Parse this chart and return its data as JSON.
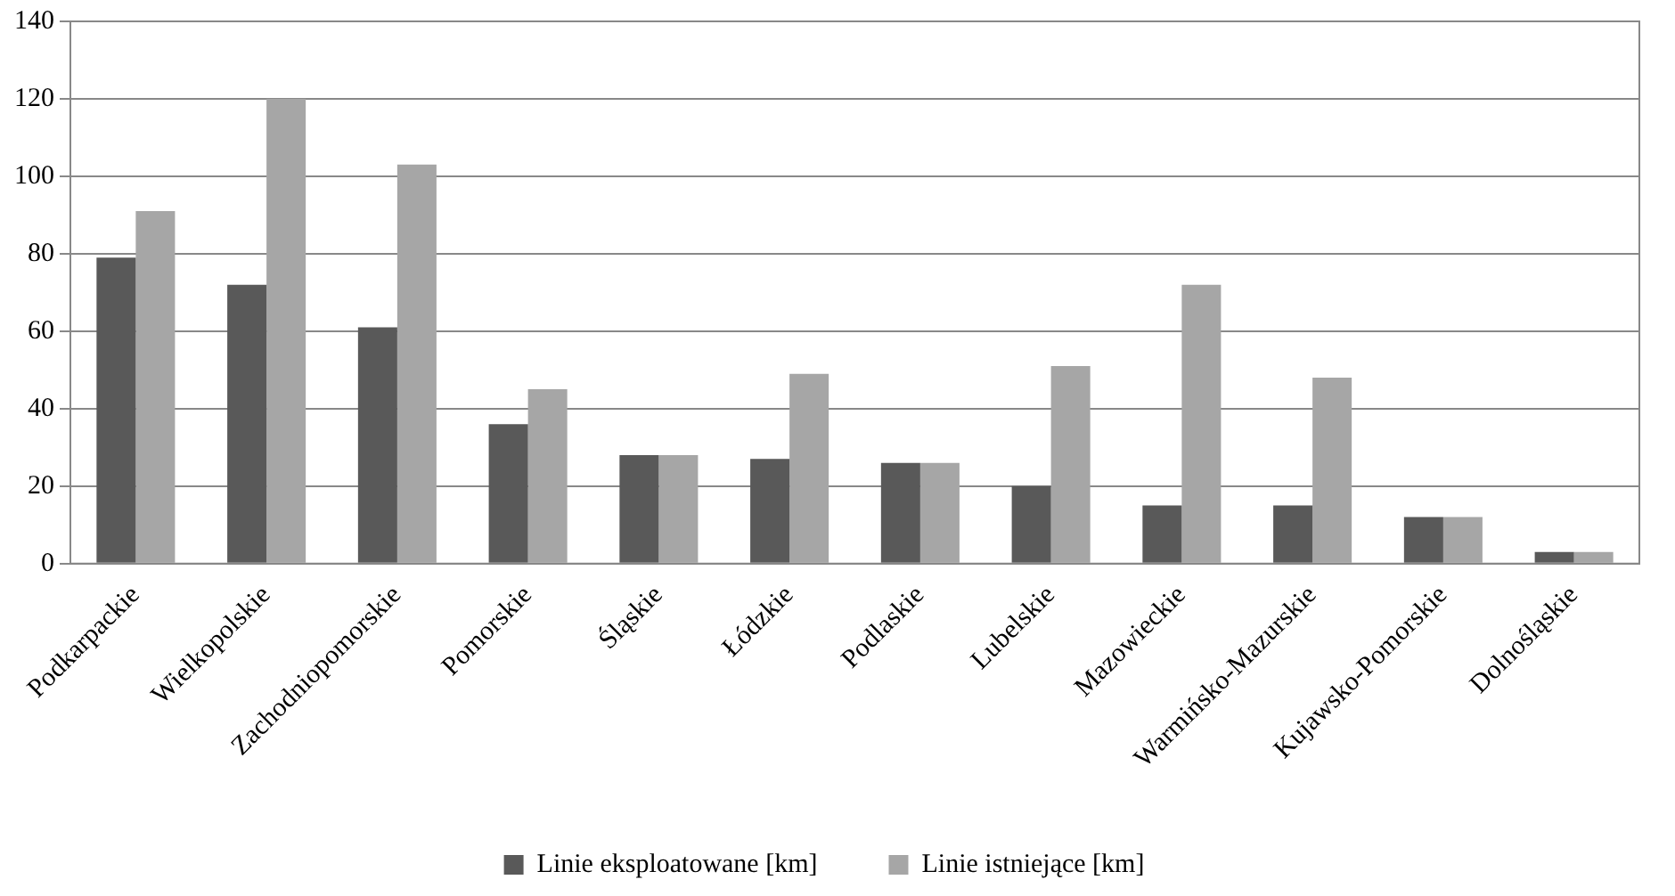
{
  "chart_data": {
    "type": "bar",
    "categories": [
      "Podkarpackie",
      "Wielkopolskie",
      "Zachodniopomorskie",
      "Pomorskie",
      "Śląskie",
      "Łódzkie",
      "Podlaskie",
      "Lubelskie",
      "Mazowieckie",
      "Warmińsko-Mazurskie",
      "Kujawsko-Pomorskie",
      "Dolnośląskie"
    ],
    "series": [
      {
        "name": "Linie eksploatowane [km]",
        "color": "#595959",
        "values": [
          79,
          72,
          61,
          36,
          28,
          27,
          26,
          20,
          15,
          15,
          12,
          3
        ]
      },
      {
        "name": "Linie istniejące [km]",
        "color": "#a6a6a6",
        "values": [
          91,
          120,
          103,
          45,
          28,
          49,
          26,
          51,
          72,
          48,
          12,
          3
        ]
      }
    ],
    "ylim": [
      0,
      140
    ],
    "yticks": [
      0,
      20,
      40,
      60,
      80,
      100,
      120,
      140
    ],
    "grid": "y",
    "legend": "bottom"
  }
}
